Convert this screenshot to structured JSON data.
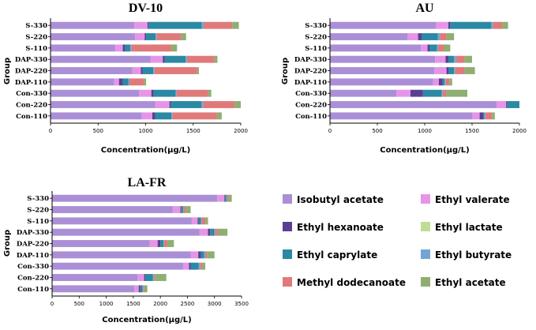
{
  "legend": {
    "items": [
      {
        "name": "Isobutyl acetate",
        "color": "#ab8fd6"
      },
      {
        "name": "Ethyl valerate",
        "color": "#e695e6"
      },
      {
        "name": "Ethyl hexanoate",
        "color": "#5b3f91"
      },
      {
        "name": "Ethyl lactate",
        "color": "#c0dd94"
      },
      {
        "name": "Ethyl caprylate",
        "color": "#2b89a3"
      },
      {
        "name": "Ethyl butyrate",
        "color": "#73a4d6"
      },
      {
        "name": "Methyl dodecanoate",
        "color": "#e07a7a"
      },
      {
        "name": "Ethyl acetate",
        "color": "#8fae72"
      }
    ]
  },
  "chart_data": [
    {
      "type": "bar",
      "orientation": "horizontal",
      "stacked": true,
      "title": "DV-10",
      "xlabel": "Concentration(μg/L)",
      "ylabel": "Group",
      "xlim": [
        0,
        2000
      ],
      "xticks": [
        0,
        500,
        1000,
        1500,
        2000
      ],
      "categories": [
        "S-330",
        "S-220",
        "S-110",
        "DAP-330",
        "DAP-220",
        "DAP-110",
        "Con-330",
        "Con-220",
        "Con-110"
      ],
      "series": [
        {
          "name": "Isobutyl acetate",
          "values": [
            880,
            890,
            680,
            1050,
            860,
            670,
            930,
            1100,
            960
          ]
        },
        {
          "name": "Ethyl valerate",
          "values": [
            140,
            100,
            80,
            130,
            90,
            50,
            130,
            150,
            110
          ]
        },
        {
          "name": "Ethyl hexanoate",
          "values": [
            10,
            15,
            20,
            20,
            20,
            40,
            25,
            15,
            30
          ]
        },
        {
          "name": "Ethyl lactate",
          "values": [
            0,
            0,
            0,
            0,
            0,
            0,
            0,
            0,
            0
          ]
        },
        {
          "name": "Ethyl caprylate",
          "values": [
            560,
            100,
            60,
            220,
            110,
            60,
            230,
            320,
            170
          ]
        },
        {
          "name": "Ethyl butyrate",
          "values": [
            20,
            10,
            10,
            15,
            10,
            10,
            10,
            20,
            10
          ]
        },
        {
          "name": "Methyl dodecanoate",
          "values": [
            300,
            260,
            420,
            290,
            450,
            150,
            330,
            330,
            470
          ]
        },
        {
          "name": "Ethyl acetate",
          "values": [
            70,
            50,
            60,
            30,
            20,
            25,
            35,
            65,
            50
          ]
        }
      ]
    },
    {
      "type": "bar",
      "orientation": "horizontal",
      "stacked": true,
      "title": "AU",
      "xlabel": "Concentration(μg/L)",
      "ylabel": "Group",
      "xlim": [
        0,
        2000
      ],
      "xticks": [
        0,
        500,
        1000,
        1500,
        2000
      ],
      "categories": [
        "S-330",
        "S-220",
        "S-110",
        "DAP-330",
        "DAP-220",
        "DAP-110",
        "Con-330",
        "Con-220",
        "Con-110"
      ],
      "series": [
        {
          "name": "Isobutyl acetate",
          "values": [
            1120,
            820,
            960,
            1110,
            1100,
            1090,
            700,
            1760,
            1500
          ]
        },
        {
          "name": "Ethyl valerate",
          "values": [
            130,
            110,
            70,
            110,
            130,
            60,
            150,
            100,
            80
          ]
        },
        {
          "name": "Ethyl hexanoate",
          "values": [
            20,
            40,
            20,
            30,
            20,
            40,
            130,
            10,
            40
          ]
        },
        {
          "name": "Ethyl lactate",
          "values": [
            0,
            0,
            0,
            0,
            0,
            0,
            0,
            0,
            0
          ]
        },
        {
          "name": "Ethyl caprylate",
          "values": [
            430,
            170,
            80,
            60,
            60,
            20,
            200,
            130,
            10
          ]
        },
        {
          "name": "Ethyl butyrate",
          "values": [
            20,
            20,
            10,
            20,
            10,
            10,
            10,
            0,
            10
          ]
        },
        {
          "name": "Methyl dodecanoate",
          "values": [
            100,
            70,
            60,
            90,
            100,
            40,
            40,
            0,
            70
          ]
        },
        {
          "name": "Ethyl acetate",
          "values": [
            60,
            80,
            70,
            80,
            110,
            30,
            220,
            0,
            30
          ]
        }
      ]
    },
    {
      "type": "bar",
      "orientation": "horizontal",
      "stacked": true,
      "title": "LA-FR",
      "xlabel": "Concentration(μg/L)",
      "ylabel": "Group",
      "xlim": [
        0,
        3500
      ],
      "xticks": [
        0,
        500,
        1000,
        1500,
        2000,
        2500,
        3000,
        3500
      ],
      "categories": [
        "S-330",
        "S-220",
        "S-110",
        "DAP-330",
        "DAP-220",
        "DAP-110",
        "Con-330",
        "Con-220",
        "Con-110"
      ],
      "series": [
        {
          "name": "Isobutyl acetate",
          "values": [
            3050,
            2230,
            2580,
            2720,
            1800,
            2560,
            2420,
            1580,
            1520
          ]
        },
        {
          "name": "Ethyl valerate",
          "values": [
            130,
            140,
            110,
            160,
            150,
            140,
            110,
            120,
            80
          ]
        },
        {
          "name": "Ethyl hexanoate",
          "values": [
            10,
            10,
            20,
            40,
            50,
            50,
            30,
            20,
            30
          ]
        },
        {
          "name": "Ethyl lactate",
          "values": [
            0,
            0,
            0,
            0,
            0,
            0,
            0,
            0,
            0
          ]
        },
        {
          "name": "Ethyl caprylate",
          "values": [
            30,
            40,
            40,
            80,
            60,
            60,
            150,
            140,
            40
          ]
        },
        {
          "name": "Ethyl butyrate",
          "values": [
            10,
            10,
            10,
            10,
            10,
            20,
            20,
            20,
            10
          ]
        },
        {
          "name": "Methyl dodecanoate",
          "values": [
            30,
            40,
            70,
            50,
            60,
            30,
            40,
            20,
            20
          ]
        },
        {
          "name": "Ethyl acetate",
          "values": [
            60,
            90,
            50,
            180,
            120,
            140,
            60,
            210,
            60
          ]
        }
      ]
    }
  ]
}
